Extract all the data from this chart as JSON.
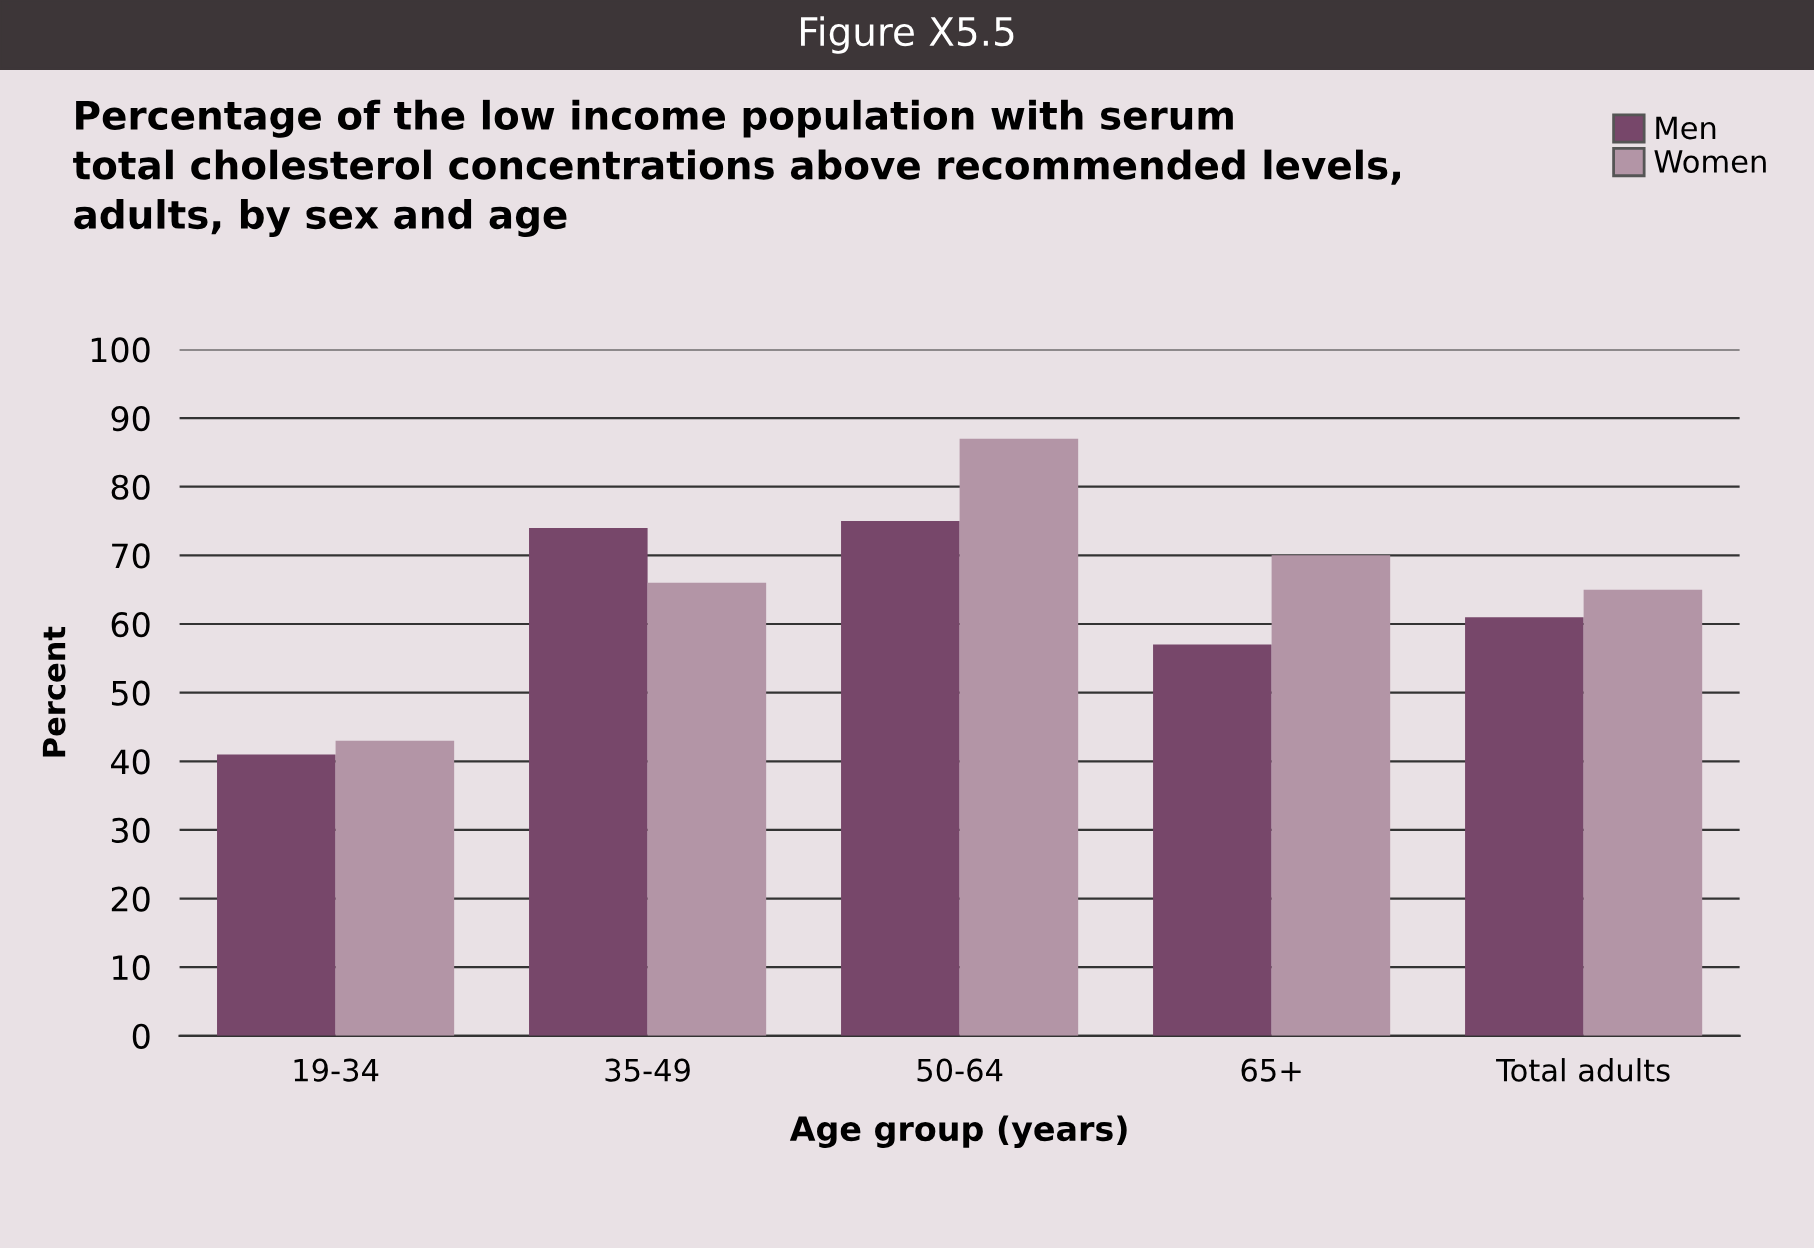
{
  "chart_data": {
    "type": "bar",
    "title": "Percentage of the low income population with serum\ntotal cholesterol concentrations above recommended levels,\nadults, by sex and age",
    "annotations": [
      "Figure X5.5"
    ],
    "xlabel": "Age group (years)",
    "ylabel": "Percent",
    "categories": [
      "19-34",
      "35-49",
      "50-64",
      "65+",
      "Total adults"
    ],
    "series": [
      {
        "name": "Men",
        "color": "#77476a",
        "values": [
          41,
          74,
          75,
          57,
          61
        ]
      },
      {
        "name": "Women",
        "color": "#b395a6",
        "values": [
          43,
          66,
          87,
          70,
          65
        ]
      }
    ],
    "ylim": [
      0,
      100
    ],
    "yticks": [
      0,
      10,
      20,
      30,
      40,
      50,
      60,
      70,
      80,
      90,
      100
    ],
    "grid": "y",
    "legend": "top right"
  }
}
